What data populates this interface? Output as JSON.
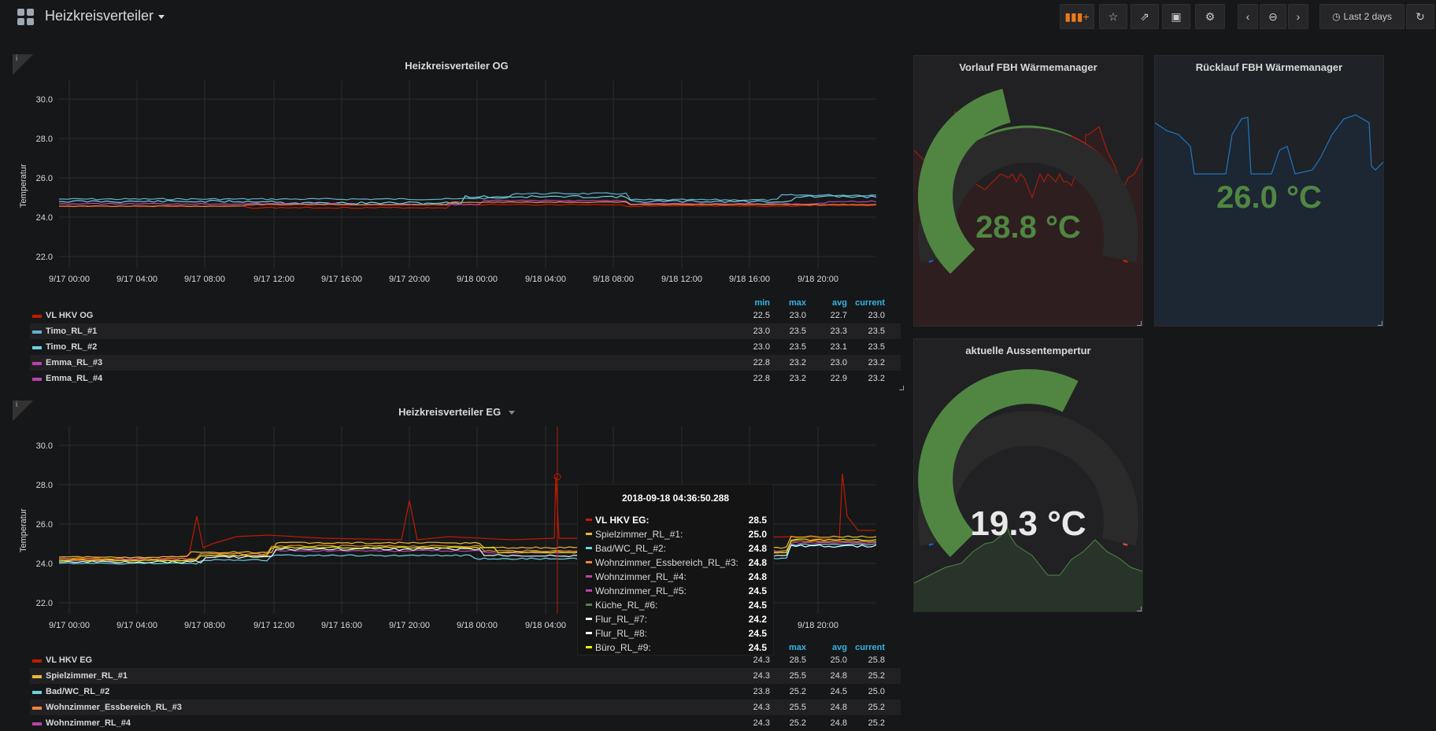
{
  "header": {
    "dashboard_title": "Heizkreisverteiler",
    "time_range": "Last 2 days"
  },
  "panels": {
    "og": {
      "title": "Heizkreisverteiler OG",
      "info": "i",
      "ylabel": "Temperatur",
      "yticks": [
        "30.0",
        "28.0",
        "26.0",
        "24.0",
        "22.0"
      ],
      "xticks": [
        "9/17 00:00",
        "9/17 04:00",
        "9/17 08:00",
        "9/17 12:00",
        "9/17 16:00",
        "9/17 20:00",
        "9/18 00:00",
        "9/18 04:00",
        "9/18 08:00",
        "9/18 12:00",
        "9/18 16:00",
        "9/18 20:00"
      ],
      "legend_headers": [
        "min",
        "max",
        "avg",
        "current"
      ],
      "legend": [
        {
          "name": "VL HKV OG",
          "color": "#bf1b00",
          "min": "22.5",
          "max": "23.0",
          "avg": "22.7",
          "current": "23.0"
        },
        {
          "name": "Timo_RL_#1",
          "color": "#64b0c8",
          "min": "23.0",
          "max": "23.5",
          "avg": "23.3",
          "current": "23.5"
        },
        {
          "name": "Timo_RL_#2",
          "color": "#6ed0e0",
          "min": "23.0",
          "max": "23.5",
          "avg": "23.1",
          "current": "23.5"
        },
        {
          "name": "Emma_RL_#3",
          "color": "#ba43a9",
          "min": "22.8",
          "max": "23.2",
          "avg": "23.0",
          "current": "23.2"
        },
        {
          "name": "Emma_RL_#4",
          "color": "#ba43a9",
          "min": "22.8",
          "max": "23.2",
          "avg": "22.9",
          "current": "23.2"
        }
      ]
    },
    "eg": {
      "title": "Heizkreisverteiler EG",
      "info": "i",
      "ylabel": "Temperatur",
      "yticks": [
        "30.0",
        "28.0",
        "26.0",
        "24.0",
        "22.0"
      ],
      "xticks": [
        "9/17 00:00",
        "9/17 04:00",
        "9/17 08:00",
        "9/17 12:00",
        "9/17 16:00",
        "9/17 20:00",
        "9/18 00:00",
        "9/18 04:00",
        "9/18 20:00"
      ],
      "legend_headers": [
        "max",
        "avg",
        "current"
      ],
      "legend": [
        {
          "name": "VL HKV EG",
          "color": "#bf1b00",
          "min": "24.3",
          "max": "28.5",
          "avg": "25.0",
          "current": "25.8"
        },
        {
          "name": "Spielzimmer_RL_#1",
          "color": "#eab839",
          "min": "24.3",
          "max": "25.5",
          "avg": "24.8",
          "current": "25.2"
        },
        {
          "name": "Bad/WC_RL_#2",
          "color": "#6ed0e0",
          "min": "23.8",
          "max": "25.2",
          "avg": "24.5",
          "current": "25.0"
        },
        {
          "name": "Wohnzimmer_Essbereich_RL_#3",
          "color": "#ef843c",
          "min": "24.3",
          "max": "25.5",
          "avg": "24.8",
          "current": "25.2"
        },
        {
          "name": "Wohnzimmer_RL_#4",
          "color": "#ba43a9",
          "min": "24.3",
          "max": "25.2",
          "avg": "24.8",
          "current": "25.2"
        }
      ],
      "tooltip": {
        "time": "2018-09-18 04:36:50.288",
        "rows": [
          {
            "name": "VL HKV EG:",
            "color": "#bf1b00",
            "value": "28.5",
            "bold": true
          },
          {
            "name": "Spielzimmer_RL_#1:",
            "color": "#eab839",
            "value": "25.0"
          },
          {
            "name": "Bad/WC_RL_#2:",
            "color": "#6ed0e0",
            "value": "24.8"
          },
          {
            "name": "Wohnzimmer_Essbereich_RL_#3:",
            "color": "#ef843c",
            "value": "24.8"
          },
          {
            "name": "Wohnzimmer_RL_#4:",
            "color": "#ba43a9",
            "value": "24.8"
          },
          {
            "name": "Wohnzimmer_RL_#5:",
            "color": "#ba43a9",
            "value": "24.5"
          },
          {
            "name": "Küche_RL_#6:",
            "color": "#508642",
            "value": "24.5"
          },
          {
            "name": "Flur_RL_#7:",
            "color": "#e5f7ff",
            "value": "24.2"
          },
          {
            "name": "Flur_RL_#8:",
            "color": "#ffffff",
            "value": "24.5"
          },
          {
            "name": "Büro_RL_#9:",
            "color": "#e0f400",
            "value": "24.5"
          }
        ]
      }
    },
    "vorlauf": {
      "title": "Vorlauf FBH Wärmemanager",
      "value": "28.8 °C",
      "gauge_fraction": 0.45
    },
    "ruecklauf": {
      "title": "Rücklauf FBH Wärmemanager",
      "value": "26.0 °C"
    },
    "aussen": {
      "title": "aktuelle Aussentempertur",
      "value": "19.3 °C",
      "gauge_fraction": 0.6
    }
  }
}
